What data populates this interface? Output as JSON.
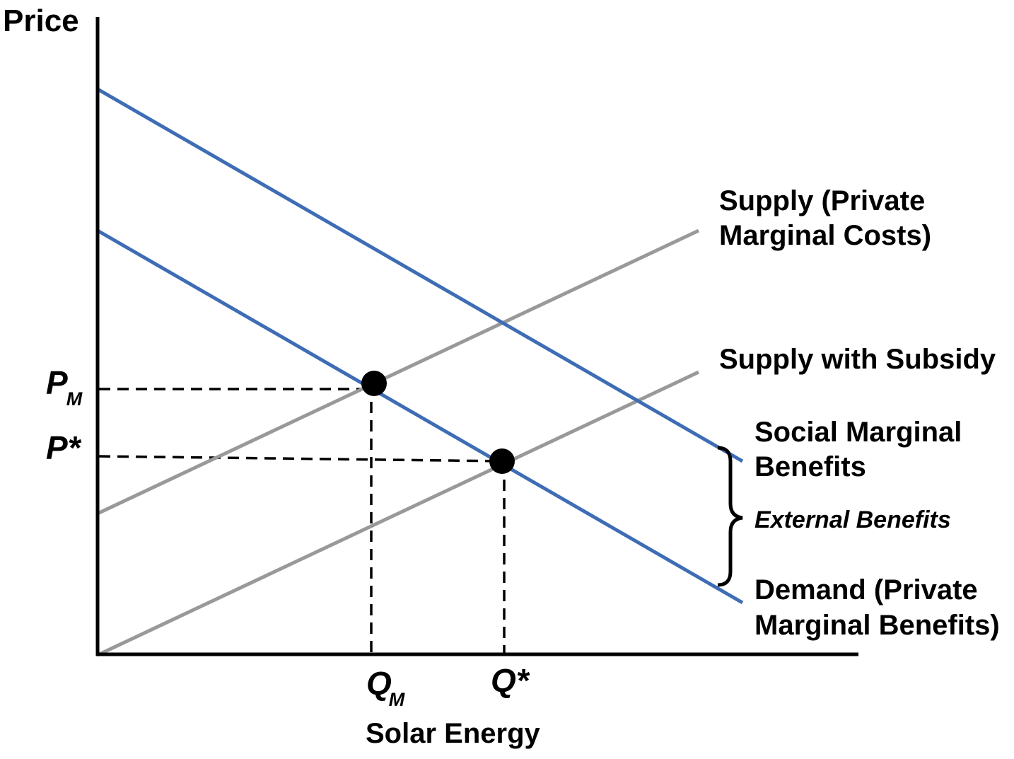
{
  "y_axis_label": "Price",
  "x_axis_label": "Solar Energy",
  "colors": {
    "demand_curves": "#3e6db5",
    "supply_curves": "#999999",
    "guides": "#000000"
  },
  "curves": {
    "supply_private": {
      "line1": "Supply (Private",
      "line2": "Marginal Costs)"
    },
    "supply_subsidy": {
      "label": "Supply with Subsidy"
    },
    "social_benefits": {
      "line1": "Social Marginal",
      "line2": "Benefits"
    },
    "external_benefits": {
      "label": "External Benefits"
    },
    "demand_private": {
      "line1": "Demand (Private",
      "line2": "Marginal Benefits)"
    }
  },
  "ticks": {
    "pm": {
      "main": "P",
      "sub": "M"
    },
    "pstar": {
      "main": "P*"
    },
    "qm": {
      "main": "Q",
      "sub": "M"
    },
    "qstar": {
      "main": "Q*"
    }
  },
  "equilibria": [
    {
      "name": "market-equilibrium",
      "q": "QM",
      "p": "PM"
    },
    {
      "name": "social-optimum",
      "q": "Q*",
      "p": "P*"
    }
  ]
}
